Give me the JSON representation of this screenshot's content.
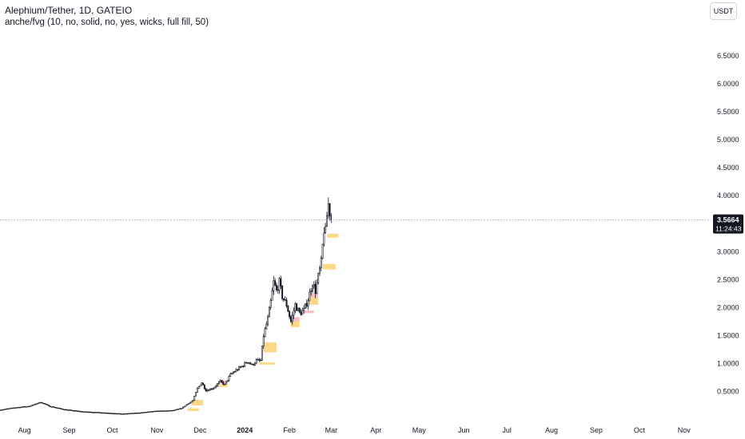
{
  "header": {
    "title": "Alephium/Tether, 1D, GATEIO",
    "indicator": "anche/fvg (10, no, solid, no, yes, wicks, full fill, 50)",
    "currency_button": "USDT"
  },
  "price_label": {
    "value": "3.5664",
    "countdown": "11:24:43"
  },
  "colors": {
    "candle": "#131722",
    "bull_fvg": "#fbd989",
    "bear_fvg": "#f7c0c4",
    "price_line": "#9598a1",
    "label_bg": "#131722"
  },
  "chart_data": {
    "type": "candlestick",
    "title": "Alephium/Tether, 1D, GATEIO",
    "x_start": "2023-07-15",
    "x_end": "2024-11-20",
    "ylim": [
      0.05,
      7.5
    ],
    "y_ticks": [
      "0.5000",
      "1.0000",
      "1.5000",
      "2.0000",
      "2.5000",
      "3.0000",
      "3.5000",
      "4.0000",
      "4.5000",
      "5.0000",
      "5.5000",
      "6.0000",
      "6.5000"
    ],
    "y_tick_values": [
      0.5,
      1.0,
      1.5,
      2.0,
      2.5,
      3.0,
      3.5,
      4.0,
      4.5,
      5.0,
      5.5,
      6.0,
      6.5
    ],
    "x_ticks": [
      {
        "date": "2023-08-01",
        "label": "Aug"
      },
      {
        "date": "2023-09-01",
        "label": "Sep"
      },
      {
        "date": "2023-10-01",
        "label": "Oct"
      },
      {
        "date": "2023-11-01",
        "label": "Nov"
      },
      {
        "date": "2023-12-01",
        "label": "Dec"
      },
      {
        "date": "2024-01-01",
        "label": "2024",
        "bold": true
      },
      {
        "date": "2024-02-01",
        "label": "Feb"
      },
      {
        "date": "2024-03-01",
        "label": "Mar"
      },
      {
        "date": "2024-04-01",
        "label": "Apr"
      },
      {
        "date": "2024-05-01",
        "label": "May"
      },
      {
        "date": "2024-06-01",
        "label": "Jun"
      },
      {
        "date": "2024-07-01",
        "label": "Jul"
      },
      {
        "date": "2024-08-01",
        "label": "Aug"
      },
      {
        "date": "2024-09-01",
        "label": "Sep"
      },
      {
        "date": "2024-10-01",
        "label": "Oct"
      },
      {
        "date": "2024-11-01",
        "label": "Nov"
      }
    ],
    "last_price": 3.5664,
    "price_path": [
      [
        "2023-07-15",
        0.17
      ],
      [
        "2023-07-25",
        0.21
      ],
      [
        "2023-08-05",
        0.24
      ],
      [
        "2023-08-12",
        0.31
      ],
      [
        "2023-08-18",
        0.24
      ],
      [
        "2023-08-28",
        0.18
      ],
      [
        "2023-09-10",
        0.14
      ],
      [
        "2023-09-25",
        0.12
      ],
      [
        "2023-10-08",
        0.1
      ],
      [
        "2023-10-20",
        0.12
      ],
      [
        "2023-11-01",
        0.15
      ],
      [
        "2023-11-12",
        0.16
      ],
      [
        "2023-11-18",
        0.2
      ],
      [
        "2023-11-22",
        0.27
      ],
      [
        "2023-11-26",
        0.34
      ],
      [
        "2023-11-29",
        0.55
      ],
      [
        "2023-12-02",
        0.66
      ],
      [
        "2023-12-05",
        0.52
      ],
      [
        "2023-12-10",
        0.56
      ],
      [
        "2023-12-15",
        0.68
      ],
      [
        "2023-12-18",
        0.62
      ],
      [
        "2023-12-22",
        0.8
      ],
      [
        "2023-12-26",
        0.88
      ],
      [
        "2023-12-30",
        0.95
      ],
      [
        "2024-01-03",
        1.04
      ],
      [
        "2024-01-06",
        0.97
      ],
      [
        "2024-01-09",
        1.05
      ],
      [
        "2024-01-12",
        1.05
      ],
      [
        "2024-01-14",
        1.5
      ],
      [
        "2024-01-17",
        1.8
      ],
      [
        "2024-01-19",
        2.1
      ],
      [
        "2024-01-21",
        2.45
      ],
      [
        "2024-01-23",
        2.3
      ],
      [
        "2024-01-25",
        2.45
      ],
      [
        "2024-01-27",
        2.2
      ],
      [
        "2024-01-30",
        2.05
      ],
      [
        "2024-02-02",
        1.75
      ],
      [
        "2024-02-05",
        2.05
      ],
      [
        "2024-02-08",
        1.9
      ],
      [
        "2024-02-11",
        1.95
      ],
      [
        "2024-02-14",
        2.15
      ],
      [
        "2024-02-17",
        2.45
      ],
      [
        "2024-02-19",
        2.3
      ],
      [
        "2024-02-21",
        2.55
      ],
      [
        "2024-02-23",
        2.8
      ],
      [
        "2024-02-24",
        3.1
      ],
      [
        "2024-02-25",
        3.4
      ],
      [
        "2024-02-26",
        3.35
      ],
      [
        "2024-02-27",
        3.65
      ],
      [
        "2024-02-28",
        3.85
      ],
      [
        "2024-02-29",
        3.7
      ],
      [
        "2024-03-01",
        3.5664
      ]
    ],
    "fvg_zones": [
      {
        "type": "bullish",
        "start": "2024-02-27",
        "end": "2024-03-06",
        "low": 3.25,
        "high": 3.32
      },
      {
        "type": "bullish",
        "start": "2024-02-24",
        "end": "2024-03-04",
        "low": 2.68,
        "high": 2.78
      },
      {
        "type": "bullish",
        "start": "2024-02-14",
        "end": "2024-02-21",
        "low": 2.05,
        "high": 2.2
      },
      {
        "type": "bearish",
        "start": "2024-02-15",
        "end": "2024-02-21",
        "low": 2.18,
        "high": 2.26
      },
      {
        "type": "bearish",
        "start": "2024-02-11",
        "end": "2024-02-18",
        "low": 1.9,
        "high": 1.95
      },
      {
        "type": "bullish",
        "start": "2024-02-02",
        "end": "2024-02-08",
        "low": 1.65,
        "high": 1.75
      },
      {
        "type": "bearish",
        "start": "2024-02-03",
        "end": "2024-02-08",
        "low": 1.75,
        "high": 1.83
      },
      {
        "type": "bullish",
        "start": "2024-01-14",
        "end": "2024-01-23",
        "low": 1.2,
        "high": 1.38
      },
      {
        "type": "bullish",
        "start": "2024-01-11",
        "end": "2024-01-22",
        "low": 0.98,
        "high": 1.02
      },
      {
        "type": "bullish",
        "start": "2023-12-12",
        "end": "2023-12-20",
        "low": 0.58,
        "high": 0.63
      },
      {
        "type": "bearish",
        "start": "2023-12-14",
        "end": "2023-12-20",
        "low": 0.64,
        "high": 0.7
      },
      {
        "type": "bullish",
        "start": "2023-11-25",
        "end": "2023-12-03",
        "low": 0.25,
        "high": 0.35
      },
      {
        "type": "bullish",
        "start": "2023-11-22",
        "end": "2023-11-30",
        "low": 0.15,
        "high": 0.2
      }
    ]
  }
}
